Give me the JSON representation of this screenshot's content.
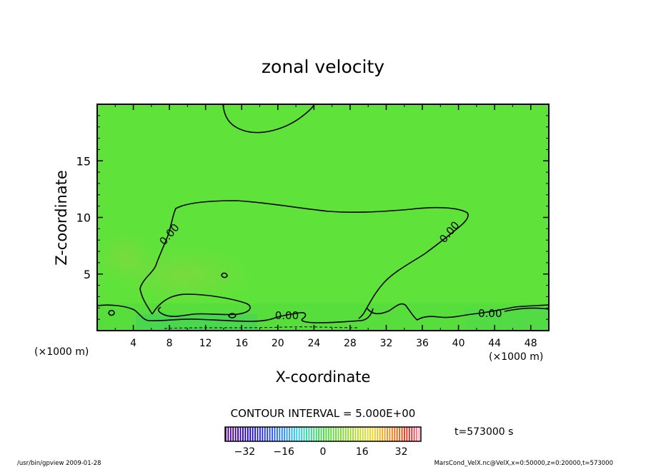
{
  "chart_data": {
    "type": "heatmap",
    "title": "zonal velocity",
    "xlabel": "X-coordinate",
    "ylabel": "Z-coordinate",
    "x_unit_left": "(×1000 m)",
    "x_unit_right": "(×1000 m)",
    "xlim": [
      0,
      50
    ],
    "ylim": [
      0,
      20
    ],
    "x_ticks": [
      4,
      8,
      12,
      16,
      20,
      24,
      28,
      32,
      36,
      40,
      44,
      48
    ],
    "x_tick_labels": [
      "4",
      "8",
      "12",
      "16",
      "20",
      "24",
      "28",
      "32",
      "36",
      "40",
      "44",
      "48"
    ],
    "y_ticks": [
      5,
      10,
      15
    ],
    "y_tick_labels": [
      "5",
      "10",
      "15"
    ],
    "grid": false,
    "contour_interval_text": "CONTOUR INTERVAL = 5.000E+00",
    "contour_labels": [
      {
        "text": "0.00",
        "x": 8.3,
        "y": 8.3
      },
      {
        "text": "0.00",
        "x": 39.3,
        "y": 8.5
      },
      {
        "text": "0.00",
        "x": 21.0,
        "y": 1.0
      },
      {
        "text": "0.00",
        "x": 43.5,
        "y": 1.2
      }
    ],
    "colorbar": {
      "min": -40,
      "max": 40,
      "tick_values": [
        -32,
        -16,
        0,
        16,
        32
      ],
      "tick_labels": [
        "−32",
        "−16",
        "0",
        "16",
        "32"
      ]
    },
    "time_label": "t=573000 s"
  },
  "footer": {
    "left": "/usr/bin/gpview   2009-01-28",
    "right": "MarsCond_VelX.nc@VelX,x=0:50000,z=0:20000,t=573000"
  }
}
